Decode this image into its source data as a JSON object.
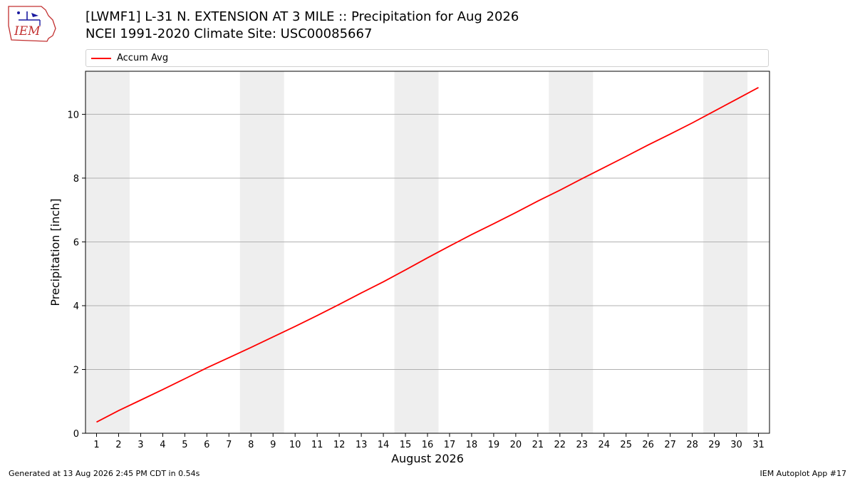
{
  "header": {
    "title": "[LWMF1] L-31 N. EXTENSION AT 3 MILE :: Precipitation for Aug 2026",
    "subtitle": "NCEI 1991-2020 Climate Site: USC00085667",
    "logo_text": "IEM"
  },
  "footer": {
    "generated": "Generated at 13 Aug 2026 2:45 PM CDT in 0.54s",
    "app": "IEM Autoplot App #17"
  },
  "chart_data": {
    "type": "line",
    "xlabel": "August 2026",
    "ylabel": "Precipitation [inch]",
    "x": [
      1,
      2,
      3,
      4,
      5,
      6,
      7,
      8,
      9,
      10,
      11,
      12,
      13,
      14,
      15,
      16,
      17,
      18,
      19,
      20,
      21,
      22,
      23,
      24,
      25,
      26,
      27,
      28,
      29,
      30,
      31
    ],
    "xlim": [
      0.5,
      31.5
    ],
    "ylim": [
      0,
      11.35
    ],
    "yticks": [
      0,
      2,
      4,
      6,
      8,
      10
    ],
    "grid": "horizontal",
    "legend_position": "top",
    "weekend_bands": [
      [
        1,
        2
      ],
      [
        8,
        9
      ],
      [
        15,
        16
      ],
      [
        22,
        23
      ],
      [
        29,
        30
      ]
    ],
    "series": [
      {
        "name": "Accum Avg",
        "color": "#ff0000",
        "values": [
          0.35,
          0.71,
          1.04,
          1.37,
          1.71,
          2.05,
          2.37,
          2.69,
          3.02,
          3.35,
          3.69,
          4.04,
          4.4,
          4.75,
          5.12,
          5.5,
          5.87,
          6.23,
          6.57,
          6.92,
          7.28,
          7.62,
          7.98,
          8.33,
          8.68,
          9.04,
          9.38,
          9.73,
          10.1,
          10.47,
          10.84
        ]
      }
    ]
  }
}
